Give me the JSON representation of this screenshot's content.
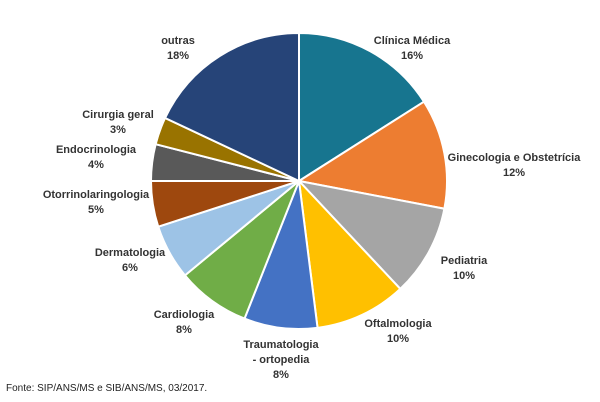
{
  "chart_data": {
    "type": "pie",
    "title": "",
    "slices": [
      {
        "label": "Clínica Médica",
        "pct_label": "16%",
        "value": 16,
        "color": "#17758F"
      },
      {
        "label": "Ginecologia e Obstetrícia",
        "pct_label": "12%",
        "value": 12,
        "color": "#ED7D31"
      },
      {
        "label": "Pediatria",
        "pct_label": "10%",
        "value": 10,
        "color": "#A5A5A5"
      },
      {
        "label": "Oftalmologia",
        "pct_label": "10%",
        "value": 10,
        "color": "#FFC000"
      },
      {
        "label": "Traumatologia - ortopedia",
        "pct_label": "8%",
        "value": 8,
        "color": "#4472C4"
      },
      {
        "label": "Cardiologia",
        "pct_label": "8%",
        "value": 8,
        "color": "#70AD47"
      },
      {
        "label": "Dermatologia",
        "pct_label": "6%",
        "value": 6,
        "color": "#9DC3E6"
      },
      {
        "label": "Otorrinolaringologia",
        "pct_label": "5%",
        "value": 5,
        "color": "#9E480E"
      },
      {
        "label": "Endocrinologia",
        "pct_label": "4%",
        "value": 4,
        "color": "#595959"
      },
      {
        "label": "Cirurgia geral",
        "pct_label": "3%",
        "value": 3,
        "color": "#997300"
      },
      {
        "label": "outras",
        "pct_label": "18%",
        "value": 18,
        "color": "#264478"
      }
    ]
  },
  "source": "Fonte: SIP/ANS/MS e SIB/ANS/MS, 03/2017."
}
